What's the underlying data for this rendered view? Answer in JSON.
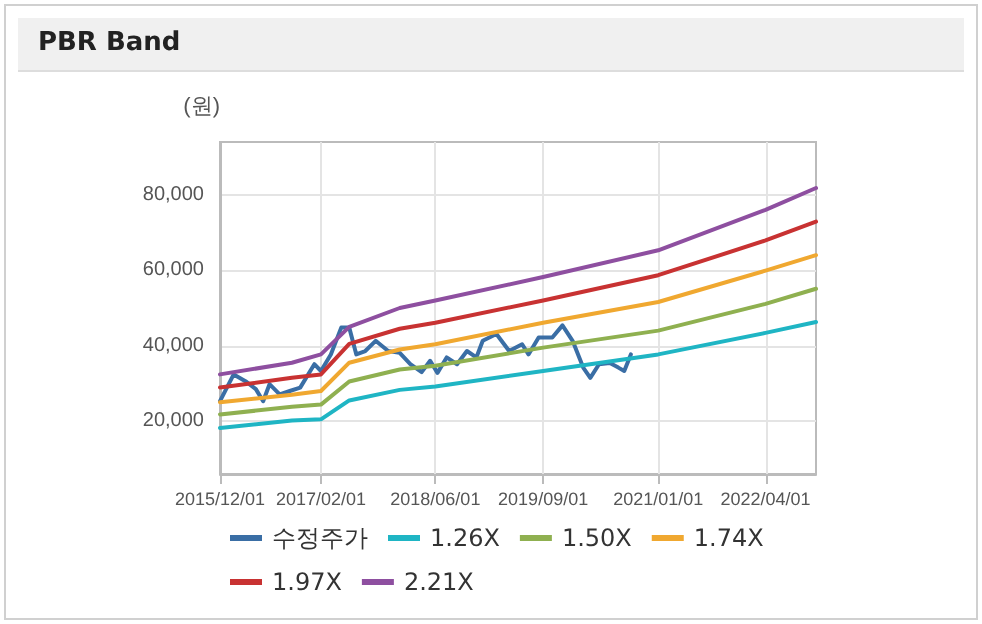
{
  "chart_data": {
    "type": "line",
    "title": "PBR Band",
    "ylabel": "(원)",
    "xlim": [
      "2015-12-01",
      "2022-11-01"
    ],
    "xticks": [
      {
        "value": "2015-12-01",
        "label": "2015/12/01"
      },
      {
        "value": "2017-02-01",
        "label": "2017/02/01"
      },
      {
        "value": "2018-06-01",
        "label": "2018/06/01"
      },
      {
        "value": "2019-09-01",
        "label": "2019/09/01"
      },
      {
        "value": "2021-01-01",
        "label": "2021/01/01"
      },
      {
        "value": "2022-04-01",
        "label": "2022/04/01"
      }
    ],
    "ylim": [
      6000,
      94000
    ],
    "yticks": [
      {
        "value": 20000,
        "label": "20,000"
      },
      {
        "value": 40000,
        "label": "40,000"
      },
      {
        "value": 60000,
        "label": "60,000"
      },
      {
        "value": 80000,
        "label": "80,000"
      }
    ],
    "grid": true,
    "legend": "bottom",
    "marker": "none",
    "line_style": "solid",
    "series": [
      {
        "name": "수정주가",
        "color": "#3a6ea5",
        "x": [
          "2015-12-01",
          "2016-01-28",
          "2016-03-18",
          "2016-05-01",
          "2016-06-01",
          "2016-06-28",
          "2016-08-10",
          "2016-09-22",
          "2016-11-05",
          "2017-01-04",
          "2017-02-01",
          "2017-03-15",
          "2017-04-28",
          "2017-06-01",
          "2017-07-01",
          "2017-08-08",
          "2017-09-21",
          "2017-11-13",
          "2018-01-01",
          "2018-02-15",
          "2018-04-04",
          "2018-05-10",
          "2018-06-10",
          "2018-07-19",
          "2018-09-01",
          "2018-10-13",
          "2018-11-22",
          "2018-12-19",
          "2019-02-15",
          "2019-04-10",
          "2019-06-04",
          "2019-07-01",
          "2019-08-13",
          "2019-10-10",
          "2019-11-22",
          "2020-01-04",
          "2020-02-18",
          "2020-03-19",
          "2020-04-25",
          "2020-06-10",
          "2020-07-16",
          "2020-08-10",
          "2020-09-07"
        ],
        "values": [
          25300,
          32400,
          30600,
          28500,
          25300,
          29800,
          27100,
          28000,
          28900,
          35100,
          33300,
          37700,
          44800,
          44800,
          37700,
          38600,
          41300,
          38600,
          38100,
          35100,
          33000,
          36000,
          32800,
          36900,
          35100,
          38600,
          36900,
          41300,
          43100,
          38600,
          40400,
          37700,
          42200,
          42200,
          45400,
          41300,
          34200,
          31500,
          35100,
          35400,
          34200,
          33300,
          37700
        ]
      },
      {
        "name": "1.26X",
        "color": "#1fb5c4",
        "x": [
          "2015-12-01",
          "2016-10-01",
          "2017-02-01",
          "2017-06-01",
          "2018-01-01",
          "2018-06-01",
          "2019-09-01",
          "2021-01-01",
          "2022-04-01",
          "2022-11-01"
        ],
        "values": [
          18200,
          20200,
          20500,
          25500,
          28300,
          29200,
          33300,
          37700,
          43400,
          46300
        ]
      },
      {
        "name": "1.50X",
        "color": "#8fb050",
        "x": [
          "2015-12-01",
          "2016-10-01",
          "2017-02-01",
          "2017-06-01",
          "2018-01-01",
          "2018-06-01",
          "2019-09-01",
          "2021-01-01",
          "2022-04-01",
          "2022-11-01"
        ],
        "values": [
          21800,
          23800,
          24400,
          30500,
          33700,
          34700,
          39500,
          44000,
          51100,
          55100
        ]
      },
      {
        "name": "1.74X",
        "color": "#f0a830",
        "x": [
          "2015-12-01",
          "2016-10-01",
          "2017-02-01",
          "2017-06-01",
          "2018-01-01",
          "2018-06-01",
          "2019-09-01",
          "2021-01-01",
          "2022-04-01",
          "2022-11-01"
        ],
        "values": [
          25000,
          27000,
          28000,
          35500,
          39000,
          40400,
          46100,
          51600,
          59900,
          64000
        ]
      },
      {
        "name": "1.97X",
        "color": "#c83232",
        "x": [
          "2015-12-01",
          "2016-10-01",
          "2017-02-01",
          "2017-06-01",
          "2018-01-01",
          "2018-06-01",
          "2019-09-01",
          "2021-01-01",
          "2022-04-01",
          "2022-11-01"
        ],
        "values": [
          28900,
          31500,
          32400,
          40500,
          44500,
          46100,
          52000,
          58700,
          67900,
          72900
        ]
      },
      {
        "name": "2.21X",
        "color": "#8e4fa0",
        "x": [
          "2015-12-01",
          "2016-10-01",
          "2017-02-01",
          "2017-06-01",
          "2018-01-01",
          "2018-06-01",
          "2019-09-01",
          "2021-01-01",
          "2022-04-01",
          "2022-11-01"
        ],
        "values": [
          32400,
          35500,
          37700,
          45000,
          50000,
          52000,
          58200,
          65300,
          76000,
          81800
        ]
      }
    ]
  }
}
